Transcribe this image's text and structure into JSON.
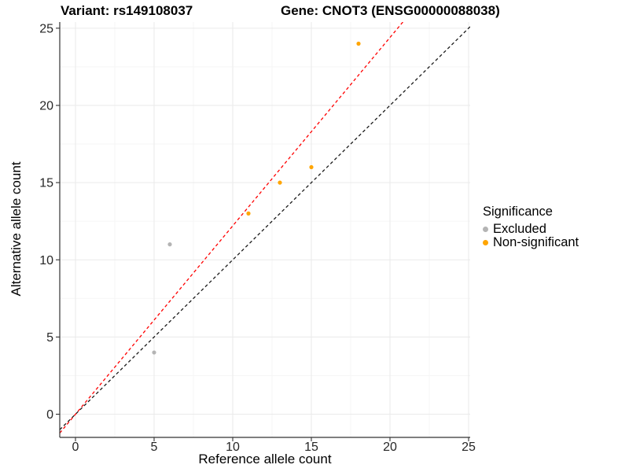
{
  "titles": {
    "left": "Variant: rs149108037",
    "right": "Gene: CNOT3 (ENSG00000088038)"
  },
  "chart_data": {
    "type": "scatter",
    "xlabel": "Reference allele count",
    "ylabel": "Alternative allele count",
    "x_ticks": [
      0,
      5,
      10,
      15,
      20,
      25
    ],
    "y_ticks": [
      0,
      5,
      10,
      15,
      20,
      25
    ],
    "x_minor": [
      2.5,
      7.5,
      12.5,
      17.5,
      22.5
    ],
    "y_minor": [
      2.5,
      7.5,
      12.5,
      17.5,
      22.5
    ],
    "x_range": [
      -1,
      25.1
    ],
    "y_range": [
      -1.5,
      25.4
    ],
    "grid": "major-and-minor",
    "series": [
      {
        "name": "Excluded",
        "color": "#B4B4B4",
        "points": [
          [
            5,
            4
          ],
          [
            6,
            11
          ]
        ]
      },
      {
        "name": "Non-significant",
        "color": "#FFA500",
        "points": [
          [
            11,
            13
          ],
          [
            13,
            15
          ],
          [
            15,
            16
          ],
          [
            18,
            24
          ]
        ]
      }
    ],
    "lines": [
      {
        "name": "identity-line",
        "slope": 1.0,
        "intercept": 0,
        "color": "#1A1A1A",
        "style": "dashed"
      },
      {
        "name": "expected-ratio-line",
        "slope": 1.22,
        "intercept": 0,
        "color": "#FF0000",
        "style": "dashed"
      }
    ],
    "legend": {
      "title": "Significance",
      "position": "right",
      "items": [
        {
          "label": "Excluded",
          "color": "#B4B4B4"
        },
        {
          "label": "Non-significant",
          "color": "#FFA500"
        }
      ]
    }
  }
}
